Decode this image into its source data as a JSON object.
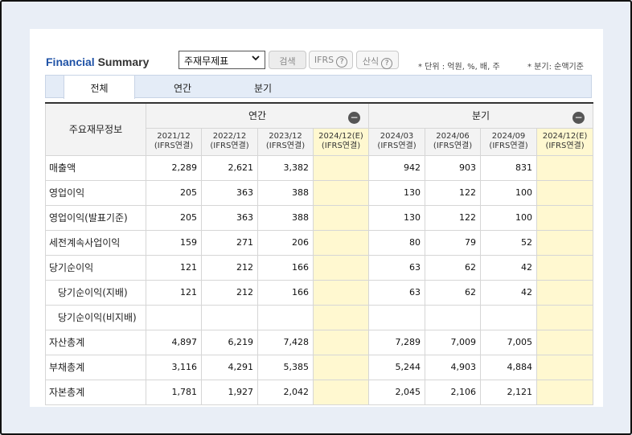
{
  "header": {
    "title_part1": "Financial",
    "title_part2": "Summary",
    "select_value": "주재무제표",
    "search_label": "검색",
    "ifrs_label": "IFRS",
    "calc_label": "산식",
    "help_icon_glyph": "?",
    "unit_note": "* 단위 : 억원, %, 배, 주",
    "period_note": "* 분기: 순액기준"
  },
  "tabs": [
    "전체",
    "연간",
    "분기"
  ],
  "table": {
    "corner_label": "주요재무정보",
    "group_annual": "연간",
    "group_quarter": "분기",
    "collapse_glyph": "−",
    "periods": [
      {
        "date": "2021/12",
        "basis": "(IFRS연결)",
        "estimate": false
      },
      {
        "date": "2022/12",
        "basis": "(IFRS연결)",
        "estimate": false
      },
      {
        "date": "2023/12",
        "basis": "(IFRS연결)",
        "estimate": false
      },
      {
        "date": "2024/12(E)",
        "basis": "(IFRS연결)",
        "estimate": true
      },
      {
        "date": "2024/03",
        "basis": "(IFRS연결)",
        "estimate": false
      },
      {
        "date": "2024/06",
        "basis": "(IFRS연결)",
        "estimate": false
      },
      {
        "date": "2024/09",
        "basis": "(IFRS연결)",
        "estimate": false
      },
      {
        "date": "2024/12(E)",
        "basis": "(IFRS연결)",
        "estimate": true
      }
    ],
    "rows": [
      {
        "label": "매출액",
        "sub": false,
        "values": [
          "2,289",
          "2,621",
          "3,382",
          "",
          "942",
          "903",
          "831",
          ""
        ]
      },
      {
        "label": "영업이익",
        "sub": false,
        "values": [
          "205",
          "363",
          "388",
          "",
          "130",
          "122",
          "100",
          ""
        ]
      },
      {
        "label": "영업이익(발표기준)",
        "sub": false,
        "values": [
          "205",
          "363",
          "388",
          "",
          "130",
          "122",
          "100",
          ""
        ]
      },
      {
        "label": "세전계속사업이익",
        "sub": false,
        "values": [
          "159",
          "271",
          "206",
          "",
          "80",
          "79",
          "52",
          ""
        ]
      },
      {
        "label": "당기순이익",
        "sub": false,
        "values": [
          "121",
          "212",
          "166",
          "",
          "63",
          "62",
          "42",
          ""
        ]
      },
      {
        "label": "당기순이익(지배)",
        "sub": true,
        "values": [
          "121",
          "212",
          "166",
          "",
          "63",
          "62",
          "42",
          ""
        ]
      },
      {
        "label": "당기순이익(비지배)",
        "sub": true,
        "values": [
          "",
          "",
          "",
          "",
          "",
          "",
          "",
          ""
        ]
      },
      {
        "label": "자산총계",
        "sub": false,
        "values": [
          "4,897",
          "6,219",
          "7,428",
          "",
          "7,289",
          "7,009",
          "7,005",
          ""
        ]
      },
      {
        "label": "부채총계",
        "sub": false,
        "values": [
          "3,116",
          "4,291",
          "5,385",
          "",
          "5,244",
          "4,903",
          "4,884",
          ""
        ]
      },
      {
        "label": "자본총계",
        "sub": false,
        "values": [
          "1,781",
          "1,927",
          "2,042",
          "",
          "2,045",
          "2,106",
          "2,121",
          ""
        ]
      }
    ]
  }
}
